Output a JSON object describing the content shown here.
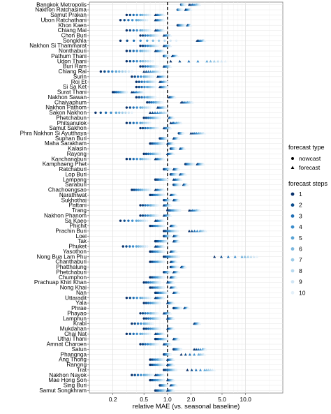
{
  "chart_data": {
    "type": "scatter",
    "xlabel": "relative MAE (vs. seasonal baseline)",
    "ylabel": "",
    "x_scale": "log",
    "xlim": [
      0.1,
      30
    ],
    "x_ticks": [
      0.2,
      0.5,
      1.0,
      2.0,
      5.0,
      10.0
    ],
    "x_tick_labels": [
      "0.2",
      "0.5",
      "1.0",
      "2.0",
      "5.0",
      "10.0"
    ],
    "reference_line_x": 1.0,
    "grid": true,
    "legend_position": "right",
    "legend_type": {
      "title": "forecast type",
      "entries": [
        {
          "label": "nowcast",
          "shape": "circle"
        },
        {
          "label": "forecast",
          "shape": "triangle"
        }
      ]
    },
    "legend_steps": {
      "title": "forecast steps",
      "entries": [
        "1",
        "2",
        "3",
        "4",
        "5",
        "6",
        "7",
        "8",
        "9",
        "10"
      ]
    },
    "step_colors": [
      "#08306b",
      "#0b4c8c",
      "#1f6fb5",
      "#3a8ccc",
      "#5aa4d6",
      "#7db8df",
      "#9dcbe7",
      "#b8d9ee",
      "#d0e5f4",
      "#e4f0f9"
    ],
    "provinces": [
      "Bangkok Metropolis",
      "Nakhon Ratchasima",
      "Samut Prakan",
      "Ubon Ratchathani",
      "Khon Kaen",
      "Chiang Mai",
      "Chon Buri",
      "Songkhla",
      "Nakhon Si Thammarat",
      "Nonthaburi",
      "Pathum Thani",
      "Udon Thani",
      "Buri Ram",
      "Chiang Rai",
      "Surin",
      "Roi Et",
      "Si Sa Ket",
      "Surat Thani",
      "Nakhon Sawan",
      "Chaiyaphum",
      "Nakhon Pathom",
      "Sakon Nakhon",
      "Phetchabun",
      "Phitsanulok",
      "Samut Sakhon",
      "Phra Nakhon Si Ayutthaya",
      "Suphan Buri",
      "Maha Sarakham",
      "Kalasin",
      "Rayong",
      "Kanchanaburi",
      "Kamphaeng Phet",
      "Ratchaburi",
      "Lop Buri",
      "Lampang",
      "Saraburi",
      "Chachoengsao",
      "Narathiwat",
      "Sukhothai",
      "Pattani",
      "Trang",
      "Nakhon Phanom",
      "Sa Kaeo",
      "Phichit",
      "Prachin Buri",
      "Loei",
      "Tak",
      "Phuket",
      "Yasothon",
      "Nong Bua Lam Phu",
      "Chanthaburi",
      "Phatthalung",
      "Phetchaburi",
      "Chumphon",
      "Prachuap Khiri Khan",
      "Nong Khai",
      "Nan",
      "Uttaradit",
      "Yala",
      "Phrae",
      "Phayao",
      "Lamphun",
      "Krabi",
      "Mukdahan",
      "Chai Nat",
      "Uthai Thani",
      "Amnat Charoen",
      "Satun",
      "Phangnga",
      "Ang Thong",
      "Ranong",
      "Trat",
      "Nakhon Nayok",
      "Mae Hong Son",
      "Sing Buri",
      "Samut Songkhram"
    ],
    "series": [
      {
        "name": "nowcast",
        "shape": "circle",
        "values": [
          [
            1.5,
            1.55,
            1.7
          ],
          [
            1.35,
            1.4,
            1.55
          ],
          [
            0.3,
            0.45,
            0.6
          ],
          [
            0.25,
            0.4,
            0.55
          ],
          [
            1.35,
            1.5,
            1.7
          ],
          [
            0.3,
            0.45,
            0.6
          ],
          [
            0.45,
            0.6,
            0.75
          ],
          [
            0.25,
            0.55,
            1.3
          ],
          [
            0.45,
            0.6,
            0.75
          ],
          [
            0.3,
            0.45,
            0.6
          ],
          [
            0.9,
            0.95,
            1.05
          ],
          [
            0.3,
            0.45,
            0.65
          ],
          [
            0.45,
            0.6,
            0.75
          ],
          [
            0.14,
            0.22,
            0.35
          ],
          [
            0.35,
            0.5,
            0.65
          ],
          [
            0.4,
            0.55,
            0.7
          ],
          [
            0.4,
            0.55,
            0.7
          ],
          [
            0.2,
            0.25,
            0.3
          ],
          [
            0.4,
            0.55,
            0.7
          ],
          [
            0.55,
            0.7,
            0.85
          ],
          [
            0.3,
            0.45,
            0.6
          ],
          [
            0.12,
            0.22,
            0.35
          ],
          [
            0.5,
            0.65,
            0.8
          ],
          [
            0.3,
            0.45,
            0.6
          ],
          [
            0.45,
            0.6,
            0.75
          ],
          [
            1.4,
            1.5,
            1.6
          ],
          [
            0.8,
            0.9,
            1.0
          ],
          [
            0.6,
            0.75,
            0.9
          ],
          [
            1.1,
            1.2,
            1.3
          ],
          [
            0.5,
            0.65,
            0.8
          ],
          [
            0.3,
            0.45,
            0.6
          ],
          [
            1.7,
            1.9,
            2.2
          ],
          [
            0.9,
            1.0,
            1.1
          ],
          [
            1.1,
            1.2,
            1.35
          ],
          [
            0.7,
            0.85,
            1.0
          ],
          [
            1.2,
            1.3,
            1.45
          ],
          [
            0.35,
            0.45,
            0.6
          ],
          [
            0.6,
            0.75,
            0.9
          ],
          [
            0.9,
            1.0,
            1.1
          ],
          [
            0.45,
            0.6,
            0.75
          ],
          [
            1.0,
            1.2,
            1.45
          ],
          [
            0.45,
            0.6,
            0.75
          ],
          [
            0.25,
            0.4,
            0.55
          ],
          [
            0.6,
            0.75,
            0.9
          ],
          [
            0.9,
            1.1,
            1.35
          ],
          [
            0.9,
            1.0,
            1.1
          ],
          [
            0.7,
            0.85,
            1.0
          ],
          [
            0.27,
            0.4,
            0.55
          ],
          [
            0.6,
            0.75,
            0.9
          ],
          [
            0.9,
            1.1,
            1.4
          ],
          [
            0.6,
            0.75,
            0.9
          ],
          [
            1.1,
            1.2,
            1.35
          ],
          [
            0.9,
            1.0,
            1.1
          ],
          [
            0.6,
            0.75,
            0.9
          ],
          [
            0.5,
            0.65,
            0.8
          ],
          [
            0.6,
            0.75,
            0.9
          ],
          [
            0.7,
            0.85,
            1.0
          ],
          [
            0.3,
            0.45,
            0.6
          ],
          [
            0.5,
            0.65,
            0.8
          ],
          [
            1.2,
            1.35,
            1.5
          ],
          [
            0.45,
            0.6,
            0.75
          ],
          [
            0.5,
            0.65,
            0.8
          ],
          [
            0.35,
            0.5,
            0.65
          ],
          [
            0.5,
            0.65,
            0.8
          ],
          [
            0.3,
            0.45,
            0.6
          ],
          [
            0.7,
            0.85,
            1.0
          ],
          [
            0.45,
            0.6,
            0.75
          ],
          [
            1.2,
            1.35,
            1.5
          ],
          [
            0.9,
            1.0,
            1.1
          ],
          [
            0.6,
            0.75,
            0.9
          ],
          [
            0.6,
            0.75,
            0.9
          ],
          [
            0.9,
            1.1,
            1.3
          ],
          [
            0.35,
            0.5,
            0.65
          ],
          [
            0.6,
            0.75,
            0.9
          ],
          [
            0.8,
            0.9,
            1.0
          ],
          [
            0.7,
            0.85,
            1.0
          ]
        ]
      },
      {
        "name": "forecast",
        "shape": "triangle",
        "values": [
          [
            1.9,
            2.3,
            2.6
          ],
          [
            1.7,
            1.85,
            2.0
          ],
          [
            0.7,
            0.8,
            0.9
          ],
          [
            0.7,
            0.8,
            0.9
          ],
          [
            1.8,
            1.9,
            2.0
          ],
          [
            0.7,
            0.8,
            0.9
          ],
          [
            0.9,
            1.0,
            1.1
          ],
          [
            2.4,
            2.8,
            3.0
          ],
          [
            0.9,
            1.0,
            1.1
          ],
          [
            0.7,
            0.8,
            0.9
          ],
          [
            1.15,
            1.25,
            1.35
          ],
          [
            1.1,
            3.2,
            5.5
          ],
          [
            0.9,
            1.0,
            1.1
          ],
          [
            0.5,
            0.65,
            0.8
          ],
          [
            0.75,
            0.85,
            0.95
          ],
          [
            0.8,
            0.9,
            1.0
          ],
          [
            0.8,
            0.9,
            1.0
          ],
          [
            0.35,
            0.42,
            0.5
          ],
          [
            1.05,
            1.15,
            1.25
          ],
          [
            1.5,
            1.8,
            2.1
          ],
          [
            0.75,
            0.85,
            0.95
          ],
          [
            0.6,
            0.8,
            1.0
          ],
          [
            1.05,
            1.1,
            1.2
          ],
          [
            1.1,
            1.3,
            1.5
          ],
          [
            0.9,
            1.0,
            1.1
          ],
          [
            2.0,
            2.5,
            3.0
          ],
          [
            1.2,
            1.3,
            1.4
          ],
          [
            1.0,
            1.1,
            1.2
          ],
          [
            1.45,
            1.55,
            1.65
          ],
          [
            1.0,
            1.1,
            1.2
          ],
          [
            0.7,
            0.8,
            0.9
          ],
          [
            2.4,
            2.6,
            2.9
          ],
          [
            1.2,
            1.3,
            1.4
          ],
          [
            1.45,
            1.55,
            1.7
          ],
          [
            1.2,
            1.35,
            1.5
          ],
          [
            1.6,
            1.7,
            1.8
          ],
          [
            0.7,
            0.8,
            0.9
          ],
          [
            1.1,
            1.2,
            1.3
          ],
          [
            1.2,
            1.3,
            1.4
          ],
          [
            0.9,
            1.0,
            1.1
          ],
          [
            1.9,
            2.3,
            2.6
          ],
          [
            0.9,
            1.0,
            1.1
          ],
          [
            0.7,
            0.8,
            0.9
          ],
          [
            1.1,
            1.2,
            1.3
          ],
          [
            1.9,
            2.6,
            3.1
          ],
          [
            1.2,
            1.3,
            1.4
          ],
          [
            1.2,
            1.3,
            1.4
          ],
          [
            0.7,
            0.8,
            0.9
          ],
          [
            1.1,
            1.2,
            1.3
          ],
          [
            4.0,
            9.0,
            14.0
          ],
          [
            1.1,
            1.2,
            1.3
          ],
          [
            1.5,
            1.6,
            1.7
          ],
          [
            1.2,
            1.3,
            1.4
          ],
          [
            1.1,
            1.2,
            1.3
          ],
          [
            1.0,
            1.1,
            1.2
          ],
          [
            1.1,
            1.2,
            1.3
          ],
          [
            1.2,
            1.3,
            1.4
          ],
          [
            0.7,
            0.8,
            0.9
          ],
          [
            1.0,
            1.1,
            1.2
          ],
          [
            1.65,
            1.75,
            1.85
          ],
          [
            0.9,
            1.0,
            1.1
          ],
          [
            1.0,
            1.1,
            1.2
          ],
          [
            2.2,
            2.4,
            2.6
          ],
          [
            1.0,
            1.1,
            1.2
          ],
          [
            0.7,
            0.8,
            0.9
          ],
          [
            1.2,
            1.3,
            1.4
          ],
          [
            0.9,
            1.0,
            1.1
          ],
          [
            2.2,
            2.8,
            3.1
          ],
          [
            1.5,
            2.5,
            3.0
          ],
          [
            1.0,
            1.1,
            1.2
          ],
          [
            1.0,
            1.1,
            1.2
          ],
          [
            1.8,
            3.0,
            4.0
          ],
          [
            0.7,
            0.8,
            0.9
          ],
          [
            1.0,
            1.1,
            1.2
          ],
          [
            1.1,
            1.2,
            1.3
          ],
          [
            1.0,
            1.1,
            1.2
          ]
        ]
      }
    ]
  }
}
